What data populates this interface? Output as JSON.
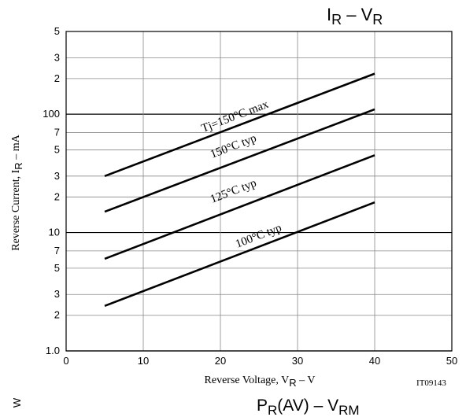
{
  "chart_data": {
    "type": "line",
    "title_parts": [
      "I",
      "R",
      " – ",
      "V",
      "R"
    ],
    "y_label_parts": [
      "Reverse Current, I",
      "R",
      " – mA"
    ],
    "x_label_parts": [
      "Reverse Voltage, V",
      "R",
      " – V"
    ],
    "figure_code": "IT09143",
    "x": [
      5,
      40
    ],
    "series": [
      {
        "name": "Tj=150°C max",
        "color": "#000000",
        "values": [
          30,
          220
        ]
      },
      {
        "name": "150°C typ",
        "color": "#000000",
        "values": [
          15,
          110
        ]
      },
      {
        "name": "125°C typ",
        "color": "#000000",
        "values": [
          6,
          45
        ]
      },
      {
        "name": "100°C typ",
        "color": "#000000",
        "values": [
          2.4,
          18
        ]
      }
    ],
    "xlim": [
      0,
      50
    ],
    "xticks": [
      0,
      10,
      20,
      30,
      40,
      50
    ],
    "ylim": [
      1,
      500
    ],
    "log_y": true,
    "yticks": [
      {
        "value": 1,
        "label": "1.0"
      },
      {
        "value": 2,
        "label": "2"
      },
      {
        "value": 3,
        "label": "3"
      },
      {
        "value": 5,
        "label": "5"
      },
      {
        "value": 7,
        "label": "7"
      },
      10,
      {
        "value": 20,
        "label": "2"
      },
      {
        "value": 30,
        "label": "3"
      },
      {
        "value": 50,
        "label": "5"
      },
      {
        "value": 70,
        "label": "7"
      },
      100,
      {
        "value": 200,
        "label": "2"
      },
      {
        "value": 300,
        "label": "3"
      },
      {
        "value": 500,
        "label": "5"
      }
    ],
    "grid": true
  },
  "next_chart": {
    "title_parts": [
      "P",
      "R",
      "(AV) – V",
      "RM"
    ],
    "y_label_fragment": "W"
  }
}
